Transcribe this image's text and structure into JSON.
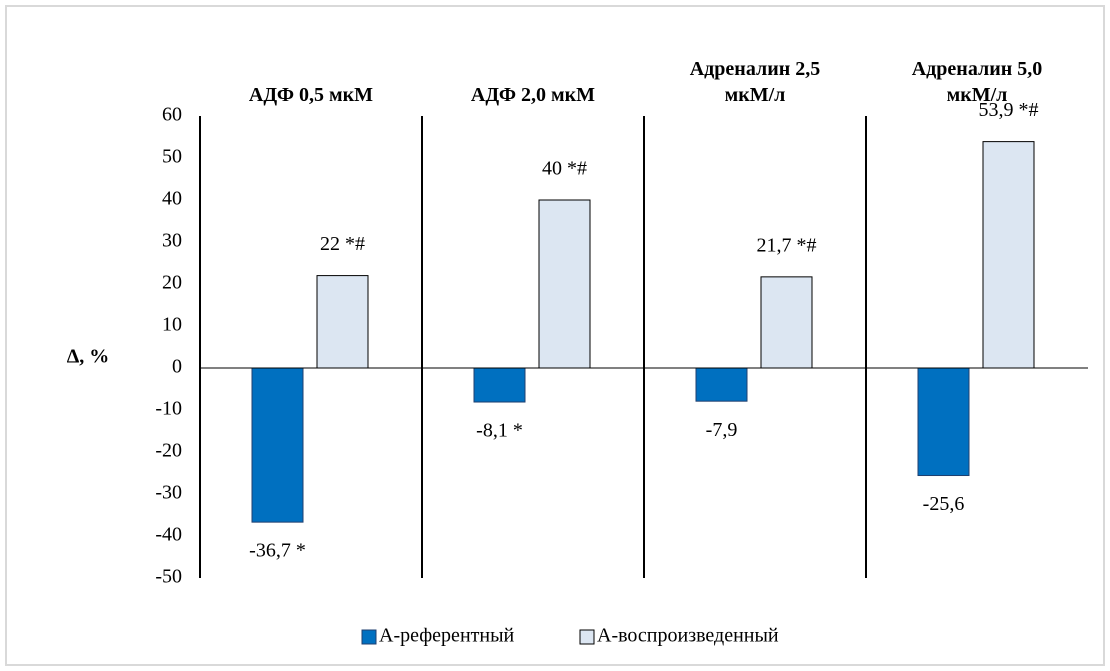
{
  "chart_data": {
    "type": "bar",
    "y_label": "Δ, %",
    "categories": [
      "АДФ 0,5 мкМ",
      "АДФ 2,0 мкМ",
      "Адреналин 2,5 мкМ/л",
      "Адреналин 5,0 мкМ/л"
    ],
    "series": [
      {
        "name": "А-референтный",
        "color": "#0070c0",
        "values": [
          -36.7,
          -8.1,
          -7.9,
          -25.6
        ],
        "value_labels": [
          "-36,7 *",
          "-8,1 *",
          "-7,9",
          "-25,6"
        ]
      },
      {
        "name": "А-воспроизведенный",
        "color": "#dce6f2",
        "values": [
          22,
          40,
          21.7,
          53.9
        ],
        "value_labels": [
          "22 *#",
          "40 *#",
          "21,7 *#",
          "53,9 *#"
        ]
      }
    ],
    "ylim": [
      -50,
      60
    ],
    "yticks": [
      -50,
      -40,
      -30,
      -20,
      -10,
      0,
      10,
      20,
      30,
      40,
      50,
      60
    ],
    "legend": "bottom"
  }
}
